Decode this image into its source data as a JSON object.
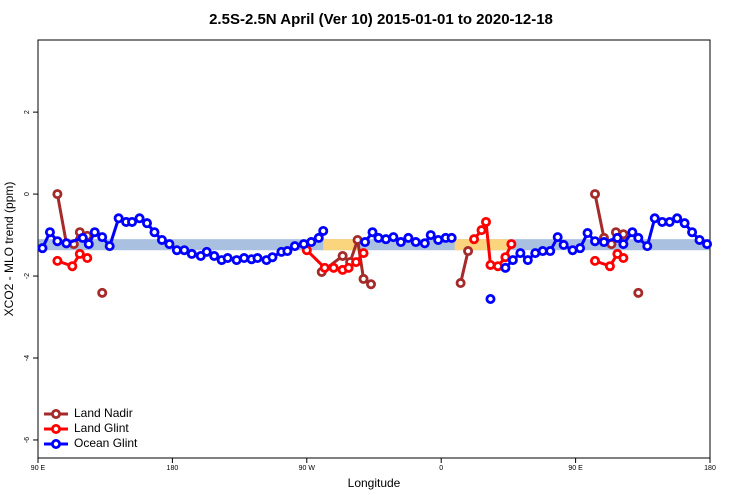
{
  "chart_data": {
    "type": "line",
    "title": "2.5S-2.5N April (Ver 10)   2015-01-01 to 2020-12-18",
    "xlabel": "Longitude",
    "ylabel": "XCO2 - MLO trend (ppm)",
    "xlim": [
      90,
      540
    ],
    "ylim": [
      -6.44,
      3.76
    ],
    "xticks": [
      {
        "value": 90,
        "label": "90 E"
      },
      {
        "value": 180,
        "label": "180"
      },
      {
        "value": 270,
        "label": "90 W"
      },
      {
        "value": 360,
        "label": "0"
      },
      {
        "value": 450,
        "label": "90 E"
      },
      {
        "value": 540,
        "label": "180"
      }
    ],
    "yticks": [
      2,
      0,
      -2,
      -4,
      -6
    ],
    "legend": "lower left",
    "band": {
      "ymin": -1.37,
      "ymax": -1.1,
      "color": "#a9c0e0"
    },
    "band_highlights": [
      {
        "xmin": 281,
        "xmax": 304,
        "color": "#fbd57e"
      },
      {
        "xmin": 369,
        "xmax": 405,
        "color": "#fbd57e"
      }
    ],
    "series": [
      {
        "name": "Land Nadir",
        "color": "#a52a2a",
        "x": [
          103,
          109,
          114,
          118,
          123,
          128,
          133,
          200,
          280,
          294,
          299,
          304,
          308,
          313,
          350,
          373,
          378,
          420,
          463,
          469,
          474,
          477,
          482,
          487,
          492
        ],
        "values": [
          0.0,
          -1.2,
          -1.22,
          -0.93,
          -1.02,
          null,
          -2.41,
          null,
          -1.9,
          -1.51,
          -1.66,
          -1.12,
          -2.07,
          -2.2,
          null,
          -2.17,
          -1.39,
          null,
          0.0,
          -1.07,
          -1.22,
          -0.93,
          -0.98,
          null,
          -2.41
        ]
      },
      {
        "name": "Land Glint",
        "color": "#ff0000",
        "x": [
          103,
          113,
          118,
          123,
          200,
          270,
          282,
          288,
          294,
          298,
          303,
          308,
          350,
          382,
          387,
          390,
          393,
          398,
          403,
          407,
          430,
          463,
          473,
          478,
          482
        ],
        "values": [
          -1.63,
          -1.76,
          -1.46,
          -1.56,
          null,
          -1.37,
          -1.8,
          -1.8,
          -1.85,
          -1.8,
          -1.66,
          -1.44,
          null,
          -1.1,
          -0.88,
          -0.68,
          -1.73,
          -1.76,
          -1.54,
          -1.22,
          null,
          -1.63,
          -1.76,
          -1.46,
          -1.56
        ]
      },
      {
        "name": "Ocean Glint",
        "color": "#0000ff",
        "x": [
          93,
          98,
          103,
          109,
          120,
          124,
          128,
          133,
          138,
          144,
          149,
          153,
          158,
          163,
          168,
          173,
          178,
          183,
          188,
          193,
          199,
          203,
          208,
          213,
          217,
          223,
          228,
          233,
          237,
          243,
          247,
          253,
          257,
          262,
          268,
          273,
          278,
          281,
          295,
          309,
          314,
          318,
          323,
          328,
          333,
          338,
          343,
          349,
          353,
          358,
          363,
          367,
          380,
          393,
          398,
          403,
          408,
          413,
          418,
          423,
          428,
          433,
          438,
          442,
          448,
          453,
          458,
          463,
          469,
          478,
          482,
          488,
          492,
          498,
          503,
          508,
          513,
          518,
          523,
          528,
          533,
          538
        ],
        "values": [
          -1.32,
          -0.93,
          -1.15,
          -1.2,
          -1.07,
          -1.22,
          -0.93,
          -1.05,
          -1.27,
          -0.59,
          -0.68,
          -0.68,
          -0.59,
          -0.71,
          -0.93,
          -1.12,
          -1.22,
          -1.37,
          -1.37,
          -1.46,
          -1.51,
          -1.41,
          -1.51,
          -1.61,
          -1.56,
          -1.61,
          -1.56,
          -1.59,
          -1.56,
          -1.61,
          -1.54,
          -1.41,
          -1.39,
          -1.27,
          -1.22,
          -1.17,
          -1.07,
          -0.9,
          null,
          -1.17,
          -0.93,
          -1.07,
          -1.1,
          -1.05,
          -1.17,
          -1.07,
          -1.17,
          -1.2,
          -1.0,
          -1.12,
          -1.07,
          -1.07,
          null,
          -2.56,
          null,
          -1.8,
          -1.61,
          -1.44,
          -1.61,
          -1.44,
          -1.39,
          -1.39,
          -1.05,
          -1.24,
          -1.37,
          -1.32,
          -0.95,
          -1.15,
          -1.17,
          -1.07,
          -1.22,
          -0.93,
          -1.07,
          -1.27,
          -0.59,
          -0.68,
          -0.68,
          -0.59,
          -0.71,
          -0.93,
          -1.12,
          -1.22
        ]
      }
    ]
  }
}
